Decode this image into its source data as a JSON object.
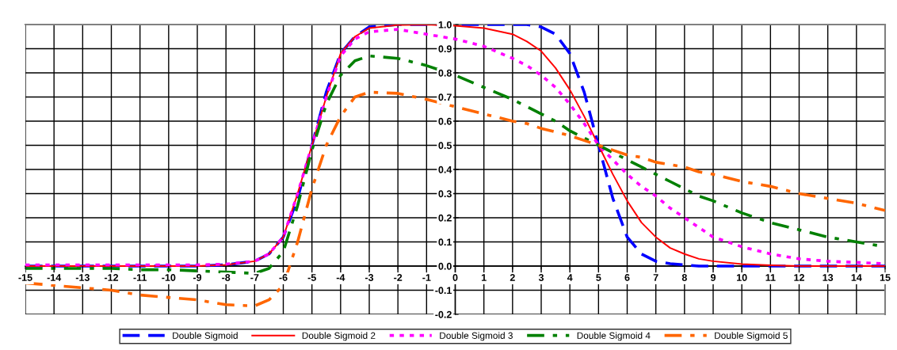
{
  "chart_data": {
    "type": "line",
    "x": [
      -15,
      -14,
      -13,
      -12,
      -11,
      -10,
      -9,
      -8,
      -7,
      -6.5,
      -6,
      -5.5,
      -5,
      -4.5,
      -4,
      -3.5,
      -3,
      -2,
      -1,
      0,
      1,
      2,
      2.5,
      3,
      3.5,
      4,
      4.5,
      5,
      5.5,
      6,
      6.5,
      7,
      7.5,
      8,
      8.5,
      9,
      10,
      11,
      12,
      13,
      14,
      15
    ],
    "series": [
      {
        "name": "Double Sigmoid",
        "color": "#0000ff",
        "line_style": "dashed",
        "values": [
          0,
          0,
          0,
          0,
          0,
          0,
          0,
          0.005,
          0.02,
          0.05,
          0.12,
          0.28,
          0.5,
          0.72,
          0.88,
          0.95,
          0.99,
          1,
          1,
          1,
          1,
          1,
          1,
          0.99,
          0.96,
          0.88,
          0.72,
          0.5,
          0.28,
          0.12,
          0.05,
          0.02,
          0.01,
          0.005,
          0,
          0,
          0,
          0,
          0,
          0,
          0,
          0
        ]
      },
      {
        "name": "Double Sigmoid 2",
        "color": "#ff0000",
        "line_style": "solid",
        "values": [
          0,
          0,
          0,
          0,
          0,
          0,
          0,
          0.005,
          0.02,
          0.05,
          0.12,
          0.3,
          0.5,
          0.7,
          0.88,
          0.95,
          0.985,
          0.998,
          1,
          0.995,
          0.985,
          0.96,
          0.93,
          0.89,
          0.82,
          0.73,
          0.62,
          0.5,
          0.38,
          0.27,
          0.18,
          0.12,
          0.075,
          0.05,
          0.03,
          0.02,
          0.008,
          0.003,
          0,
          0,
          0,
          0
        ]
      },
      {
        "name": "Double Sigmoid 3",
        "color": "#ff00ff",
        "line_style": "dotted",
        "values": [
          0.005,
          0.005,
          0.005,
          0.005,
          0.005,
          0.005,
          0.005,
          0.008,
          0.02,
          0.05,
          0.12,
          0.3,
          0.5,
          0.7,
          0.87,
          0.94,
          0.97,
          0.98,
          0.96,
          0.94,
          0.91,
          0.86,
          0.83,
          0.79,
          0.74,
          0.67,
          0.59,
          0.5,
          0.44,
          0.38,
          0.33,
          0.29,
          0.24,
          0.2,
          0.16,
          0.12,
          0.08,
          0.05,
          0.03,
          0.02,
          0.015,
          0.01
        ]
      },
      {
        "name": "Double Sigmoid 4",
        "color": "#008000",
        "line_style": "dashdot",
        "values": [
          -0.01,
          -0.01,
          -0.01,
          -0.01,
          -0.015,
          -0.015,
          -0.02,
          -0.025,
          -0.03,
          -0.01,
          0.06,
          0.25,
          0.48,
          0.67,
          0.79,
          0.85,
          0.87,
          0.86,
          0.83,
          0.79,
          0.74,
          0.69,
          0.66,
          0.63,
          0.6,
          0.56,
          0.53,
          0.5,
          0.47,
          0.44,
          0.41,
          0.38,
          0.35,
          0.32,
          0.29,
          0.27,
          0.22,
          0.18,
          0.15,
          0.12,
          0.1,
          0.08
        ]
      },
      {
        "name": "Double Sigmoid 5",
        "color": "#ff6600",
        "line_style": "dashdot",
        "values": [
          -0.07,
          -0.08,
          -0.09,
          -0.1,
          -0.12,
          -0.13,
          -0.14,
          -0.16,
          -0.165,
          -0.14,
          -0.08,
          0.1,
          0.32,
          0.5,
          0.62,
          0.7,
          0.72,
          0.715,
          0.69,
          0.66,
          0.63,
          0.6,
          0.59,
          0.57,
          0.555,
          0.54,
          0.52,
          0.5,
          0.48,
          0.46,
          0.45,
          0.43,
          0.42,
          0.41,
          0.39,
          0.38,
          0.35,
          0.33,
          0.3,
          0.28,
          0.26,
          0.23
        ]
      }
    ],
    "xlim": [
      -15,
      15
    ],
    "xticks": [
      -15,
      -14,
      -13,
      -12,
      -11,
      -10,
      -9,
      -8,
      -7,
      -6,
      -5,
      -4,
      -3,
      -2,
      -1,
      0,
      1,
      2,
      3,
      4,
      5,
      6,
      7,
      8,
      9,
      10,
      11,
      12,
      13,
      14,
      15
    ],
    "ylim": [
      -0.2,
      1.0
    ],
    "yticks": [
      -0.2,
      -0.1,
      {
        "value": 0,
        "label": "0.0"
      },
      0.1,
      0.2,
      0.3,
      0.4,
      0.5,
      0.6,
      0.7,
      0.8,
      0.9,
      {
        "value": 1,
        "label": "1.0"
      }
    ],
    "grid": true,
    "legend": "bottom",
    "marker": "none"
  }
}
